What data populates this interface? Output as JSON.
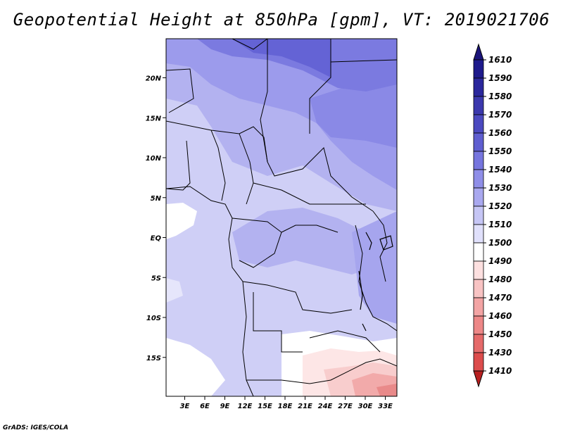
{
  "title": "Geopotential Height at 850hPa [gpm], VT: 2019021706",
  "credit": "GrADS: IGES/COLA",
  "map": {
    "lat_labels": [
      {
        "text": "20N",
        "lat": 20
      },
      {
        "text": "15N",
        "lat": 15
      },
      {
        "text": "10N",
        "lat": 10
      },
      {
        "text": "5N",
        "lat": 5
      },
      {
        "text": "EQ",
        "lat": 0
      },
      {
        "text": "5S",
        "lat": -5
      },
      {
        "text": "10S",
        "lat": -10
      },
      {
        "text": "15S",
        "lat": -15
      }
    ],
    "lon_labels": [
      {
        "text": "3E",
        "lon": 3
      },
      {
        "text": "6E",
        "lon": 6
      },
      {
        "text": "9E",
        "lon": 9
      },
      {
        "text": "12E",
        "lon": 12
      },
      {
        "text": "15E",
        "lon": 15
      },
      {
        "text": "18E",
        "lon": 18
      },
      {
        "text": "21E",
        "lon": 21
      },
      {
        "text": "24E",
        "lon": 24
      },
      {
        "text": "27E",
        "lon": 27
      },
      {
        "text": "30E",
        "lon": 30
      },
      {
        "text": "33E",
        "lon": 33
      }
    ]
  },
  "colorbar": {
    "levels": [
      {
        "label": "1610",
        "color": "#1e1a8c"
      },
      {
        "label": "1590",
        "color": "#2a279c"
      },
      {
        "label": "1580",
        "color": "#3b38ad"
      },
      {
        "label": "1570",
        "color": "#4b49c0"
      },
      {
        "label": "1560",
        "color": "#5f5ed0"
      },
      {
        "label": "1550",
        "color": "#7675de"
      },
      {
        "label": "1540",
        "color": "#8f8ee8"
      },
      {
        "label": "1530",
        "color": "#a9a8ef"
      },
      {
        "label": "1520",
        "color": "#c6c6f5"
      },
      {
        "label": "1510",
        "color": "#e0e0fb"
      },
      {
        "label": "1500",
        "color": "#ffffff"
      },
      {
        "label": "1490",
        "color": "#fde0e0"
      },
      {
        "label": "1480",
        "color": "#f8c3c3"
      },
      {
        "label": "1470",
        "color": "#f3a4a4"
      },
      {
        "label": "1460",
        "color": "#ed8787"
      },
      {
        "label": "1450",
        "color": "#e56a6a"
      },
      {
        "label": "1430",
        "color": "#dc4c4c"
      },
      {
        "label": "1410",
        "color": "#ce3232"
      }
    ],
    "top_arrow_color": "#1b147a",
    "bottom_arrow_color": "#b82020"
  }
}
